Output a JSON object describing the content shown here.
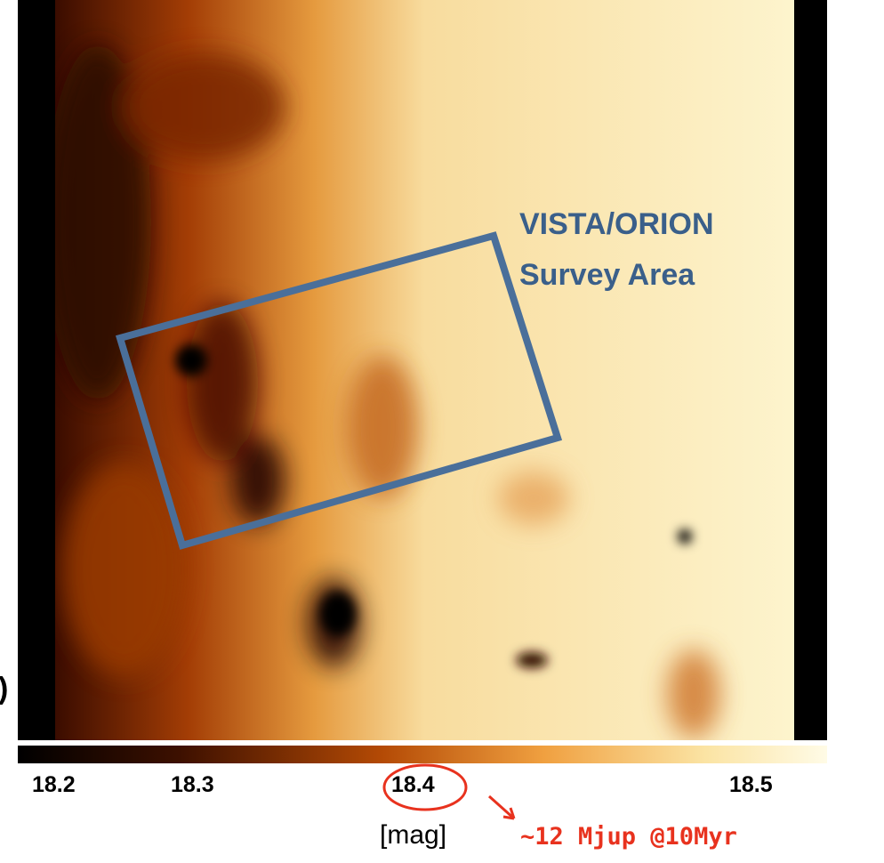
{
  "map": {
    "left_edge_text": ")",
    "survey_label": [
      "VISTA/ORION",
      "Survey Area"
    ]
  },
  "colorbar": {
    "ticks": [
      "18.2",
      "18.3",
      "18.4",
      "18.5"
    ],
    "unit": "[mag]"
  },
  "annotation": "~12 Mjup @10Myr"
}
